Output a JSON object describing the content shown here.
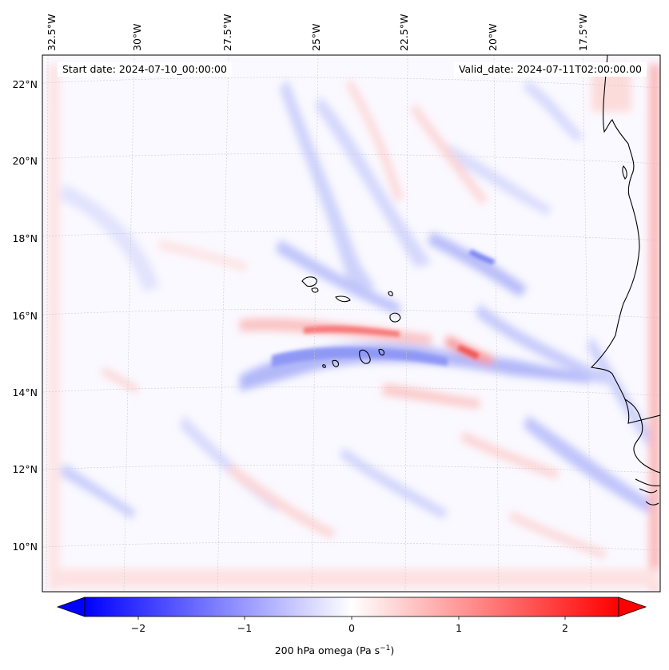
{
  "map": {
    "start_date_label": "Start date: 2024-07-10_00:00:00",
    "valid_date_label": "Valid_date: 2024-07-11T02:00:00.00",
    "lon_labels": [
      "32.5°W",
      "30°W",
      "27.5°W",
      "25°W",
      "22.5°W",
      "20°W",
      "17.5°W"
    ],
    "lat_labels": [
      "22°N",
      "20°N",
      "18°N",
      "16°N",
      "14°N",
      "12°N",
      "10°N"
    ],
    "lon_values": [
      -32.5,
      -30,
      -27.5,
      -25,
      -22.5,
      -20,
      -17.5
    ],
    "lat_values": [
      22,
      20,
      18,
      16,
      14,
      12,
      10
    ],
    "extent": {
      "lon": [
        -33.5,
        -15.0
      ],
      "lat": [
        9.0,
        22.8
      ]
    },
    "field": "200 hPa omega",
    "region_features": [
      "Cape Verde Islands",
      "West African coast"
    ]
  },
  "colorbar": {
    "label_text": "200 hPa omega (Pa s",
    "label_exp": "−1",
    "label_close": ")",
    "ticks": [
      "−2",
      "−1",
      "0",
      "1",
      "2"
    ],
    "tick_values": [
      -2,
      -1,
      0,
      1,
      2
    ],
    "range": [
      -2.5,
      2.5
    ],
    "extend": "both",
    "cmap": "bwr",
    "colors": {
      "negative": "#0000ff",
      "zero": "#ffffff",
      "positive": "#ff0000"
    }
  }
}
